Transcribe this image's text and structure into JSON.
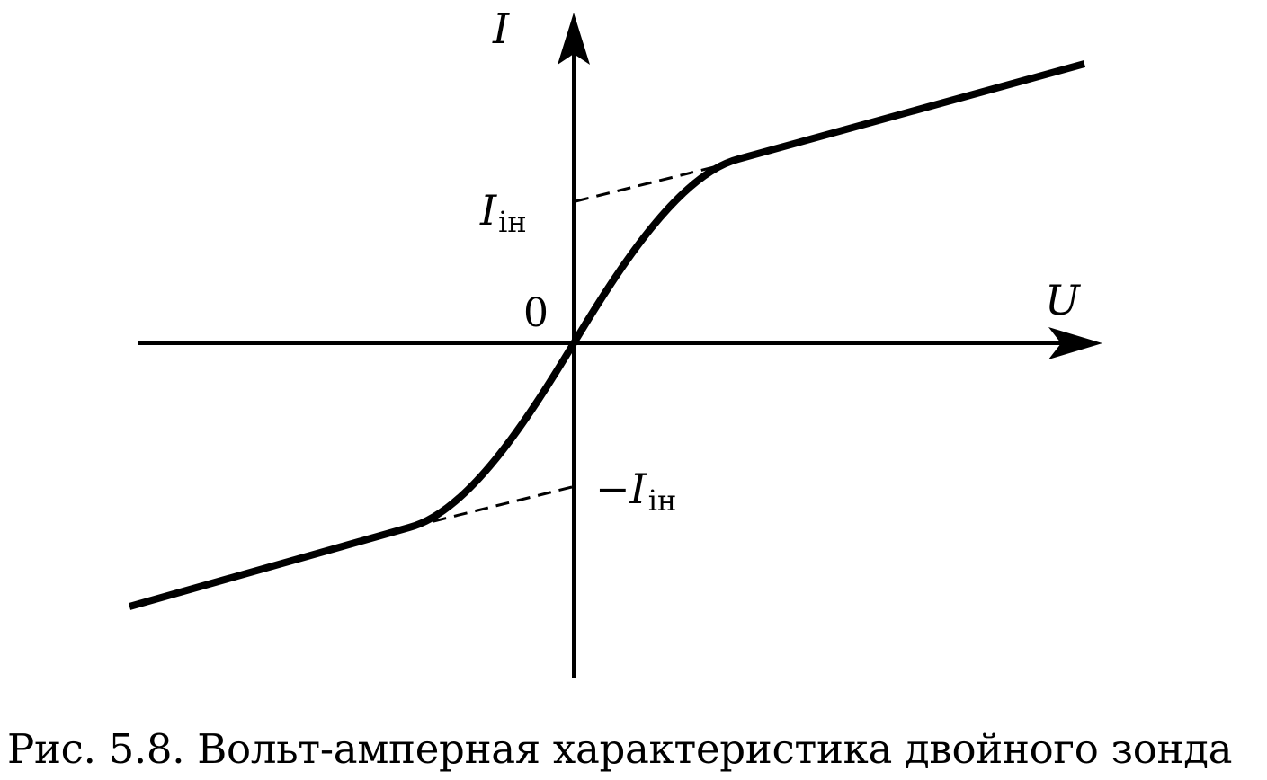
{
  "figure": {
    "axis_y_label": "I",
    "axis_x_label": "U",
    "origin_label": "0",
    "sat_pos": {
      "main": "I",
      "sub": "iн"
    },
    "sat_neg": {
      "main": "−I",
      "sub": "iн"
    }
  },
  "caption": "Рис. 5.8. Вольт-амперная характеристика двойного зонда"
}
